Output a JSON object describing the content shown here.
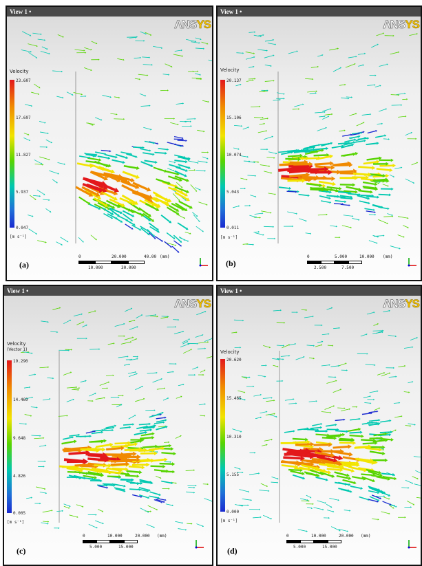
{
  "view_label": "View 1 •",
  "logo": {
    "part_a": "ΛΝS",
    "part_b": "YS"
  },
  "panels": [
    {
      "id": "a",
      "label": "(a)",
      "legend": {
        "title": "Velocity",
        "subtitle": "",
        "max": "23.607",
        "mid_high": "17.697",
        "mid": "11.827",
        "mid_low": "5.937",
        "min": "0.047",
        "unit": "[m s^-1]"
      },
      "scale": {
        "start": "0",
        "t1": "20.000",
        "t2": "40.00",
        "unit": "(mm)",
        "b1": "10.000",
        "b2": "30.000"
      }
    },
    {
      "id": "b",
      "label": "(b)",
      "legend": {
        "title": "Velocity",
        "subtitle": "",
        "max": "20.137",
        "mid_high": "15.106",
        "mid": "10.074",
        "mid_low": "5.043",
        "min": "0.011",
        "unit": "[m s^-1]"
      },
      "scale": {
        "start": "0",
        "t1": "5.000",
        "t2": "10.000",
        "unit": "(mm)",
        "b1": "2.500",
        "b2": "7.500"
      }
    },
    {
      "id": "c",
      "label": "(c)",
      "legend": {
        "title": "Velocity",
        "subtitle": "(Vector 1)",
        "max": "19.290",
        "mid_high": "14.469",
        "mid": "9.648",
        "mid_low": "4.826",
        "min": "0.005",
        "unit": "[m s^-1]"
      },
      "scale": {
        "start": "0",
        "t1": "10.000",
        "t2": "20.000",
        "unit": "(mm)",
        "b1": "5.000",
        "b2": "15.000"
      }
    },
    {
      "id": "d",
      "label": "(d)",
      "legend": {
        "title": "Velocity",
        "subtitle": "",
        "max": "20.620",
        "mid_high": "15.465",
        "mid": "10.310",
        "mid_low": "5.155",
        "min": "0.000",
        "unit": "[m s^-1]"
      },
      "scale": {
        "start": "0",
        "t1": "10.000",
        "t2": "20.000",
        "unit": "(mm)",
        "b1": "5.000",
        "b2": "15.000"
      }
    }
  ],
  "colors": {
    "high": "#e3181b",
    "upper": "#f08a00",
    "middle": "#f2e400",
    "lower": "#56d400",
    "low": "#00c8b0",
    "min": "#1a2ad0"
  }
}
